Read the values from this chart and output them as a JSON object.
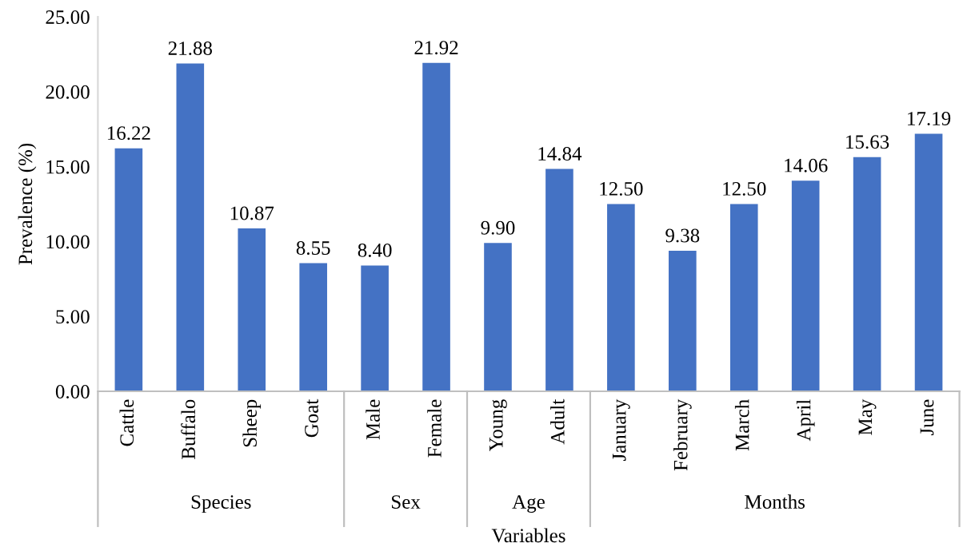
{
  "chart_data": [
    {
      "type": "bar",
      "xlabel": "Species",
      "ylabel": "Prevalence (%)",
      "categories": [
        "Cattle",
        "Buffalo",
        "Sheep",
        "Goat"
      ],
      "values": [
        16.22,
        21.88,
        10.87,
        8.55
      ],
      "value_labels": [
        "16.22",
        "21.88",
        "10.87",
        "8.55"
      ],
      "color": "#4472c4",
      "ylim": [
        0,
        25
      ],
      "yticks": [
        {
          "value": 0,
          "label": "0.00"
        },
        {
          "value": 5,
          "label": "5.00"
        },
        {
          "value": 10,
          "label": "10.00"
        },
        {
          "value": 15,
          "label": "15.00"
        },
        {
          "value": 20,
          "label": "20.00"
        },
        {
          "value": 25,
          "label": "25.00"
        }
      ],
      "annotations": [
        "Variables"
      ]
    },
    {
      "type": "bar",
      "xlabel": "Sex",
      "categories": [
        "Male",
        "Female"
      ],
      "values": [
        8.4,
        21.92
      ],
      "value_labels": [
        "8.40",
        "21.92"
      ],
      "color": "#4472c4",
      "ylim": [
        0,
        25
      ],
      "tick_labels": "x"
    },
    {
      "type": "bar",
      "xlabel": "Age",
      "categories": [
        "Young",
        "Adult"
      ],
      "values": [
        9.9,
        14.84
      ],
      "value_labels": [
        "9.90",
        "14.84"
      ],
      "color": "#4472c4",
      "ylim": [
        0,
        25
      ],
      "tick_labels": "x"
    },
    {
      "type": "bar",
      "xlabel": "Months",
      "categories": [
        "January",
        "February",
        "March",
        "April",
        "May",
        "June"
      ],
      "values": [
        12.5,
        9.38,
        12.5,
        14.06,
        15.63,
        17.19
      ],
      "value_labels": [
        "12.50",
        "9.38",
        "12.50",
        "14.06",
        "15.63",
        "17.19"
      ],
      "color": "#4472c4",
      "ylim": [
        0,
        25
      ],
      "tick_labels": "x"
    }
  ]
}
